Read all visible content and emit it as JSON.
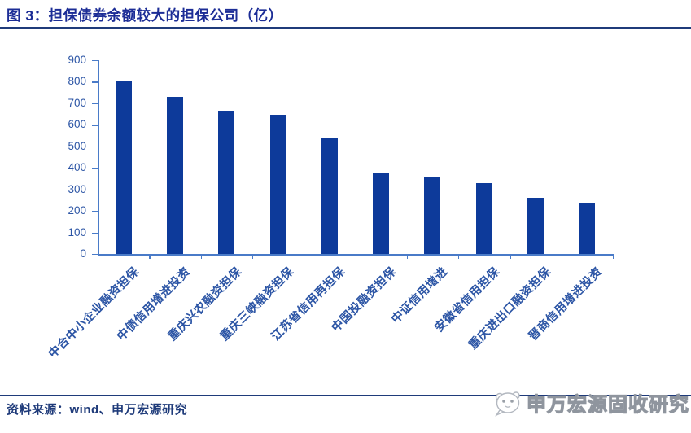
{
  "header": {
    "title": "图 3：担保债券余额较大的担保公司（亿）"
  },
  "chart_data": {
    "type": "bar",
    "title": "担保债券余额较大的担保公司（亿）",
    "categories": [
      "中合中小企业融资担保",
      "中债信用增进投资",
      "重庆兴农融资担保",
      "重庆三峡融资担保",
      "江苏省信用再担保",
      "中国投融资担保",
      "中证信用增进",
      "安徽省信用担保",
      "重庆进出口融资担保",
      "晋商信用增进投资"
    ],
    "values": [
      800,
      730,
      665,
      645,
      540,
      375,
      355,
      330,
      260,
      240
    ],
    "unit": "亿",
    "xlabel": "",
    "ylabel": "",
    "ylim": [
      0,
      900
    ],
    "ytick_interval": 100,
    "grid": false,
    "legend_position": "none",
    "bar_orientation": "vertical",
    "x_label_rotation_deg": 45
  },
  "footer": {
    "source": "资料来源：wind、申万宏源研究"
  },
  "watermark": {
    "icon": "panda-logo-icon",
    "text": "申万宏源固收研究"
  },
  "colors": {
    "bar": "#0D3A9A",
    "axis": "#4A7BC8",
    "tick_label": "#2C55A5",
    "title": "#1C2D96",
    "rule": "#1F3B7A"
  }
}
